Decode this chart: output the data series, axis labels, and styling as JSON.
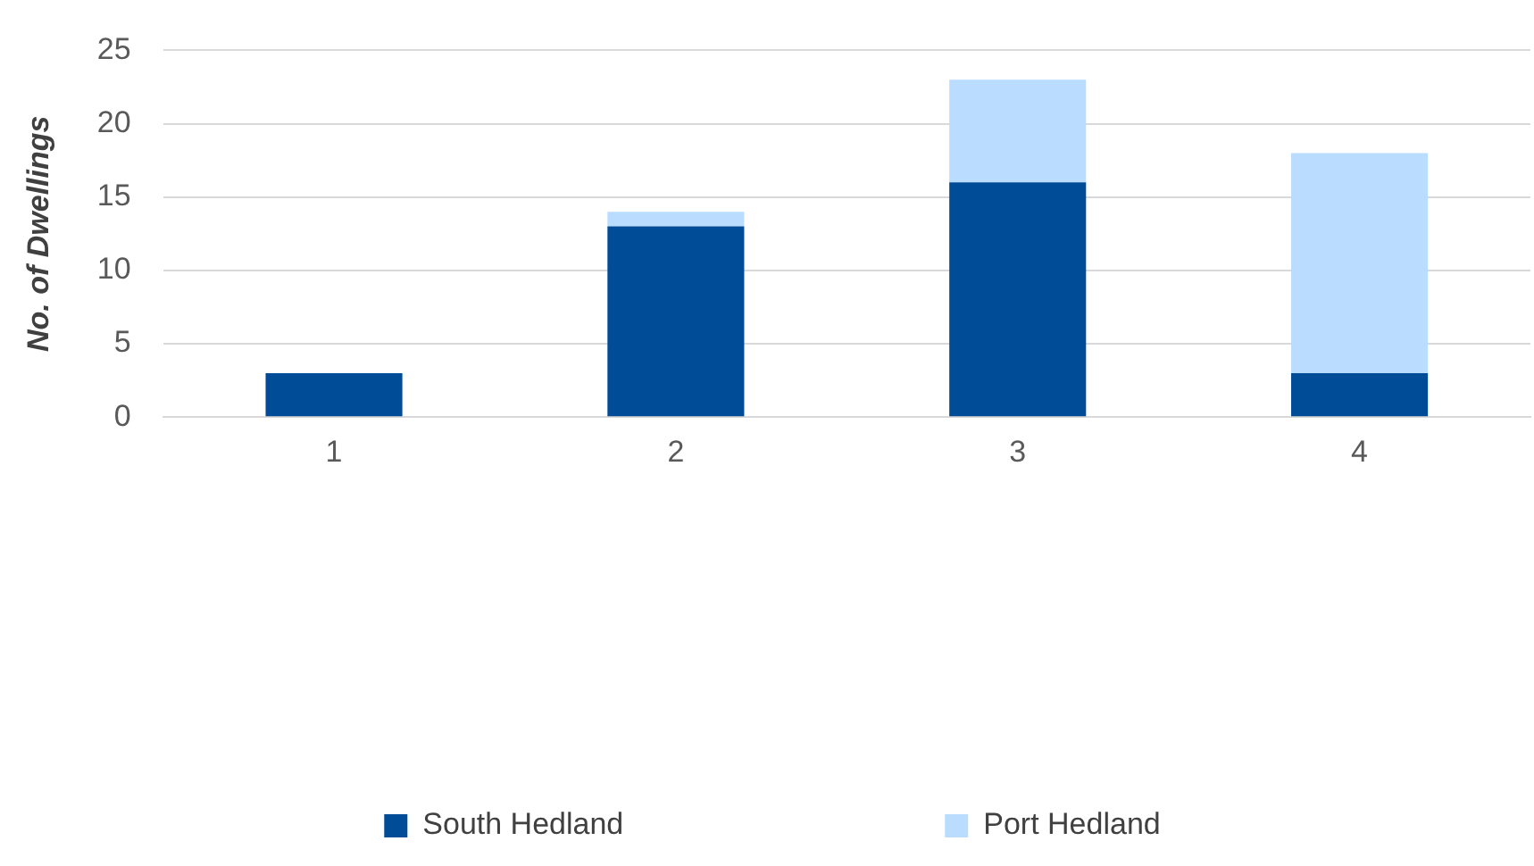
{
  "chart_data": {
    "type": "bar",
    "ylabel": "No. of Dwellings",
    "categories": [
      "1",
      "2",
      "3",
      "4"
    ],
    "stacked": true,
    "series": [
      {
        "name": "South Hedland",
        "color": "#004c97",
        "values": [
          3,
          13,
          16,
          3
        ]
      },
      {
        "name": "Port Hedland",
        "color": "#b9dcff",
        "values": [
          0,
          1,
          7,
          15
        ]
      }
    ],
    "ylim": [
      0,
      25
    ],
    "yticks": [
      0,
      5,
      10,
      15,
      20,
      25
    ],
    "grid": "y",
    "legend": "bottom"
  }
}
